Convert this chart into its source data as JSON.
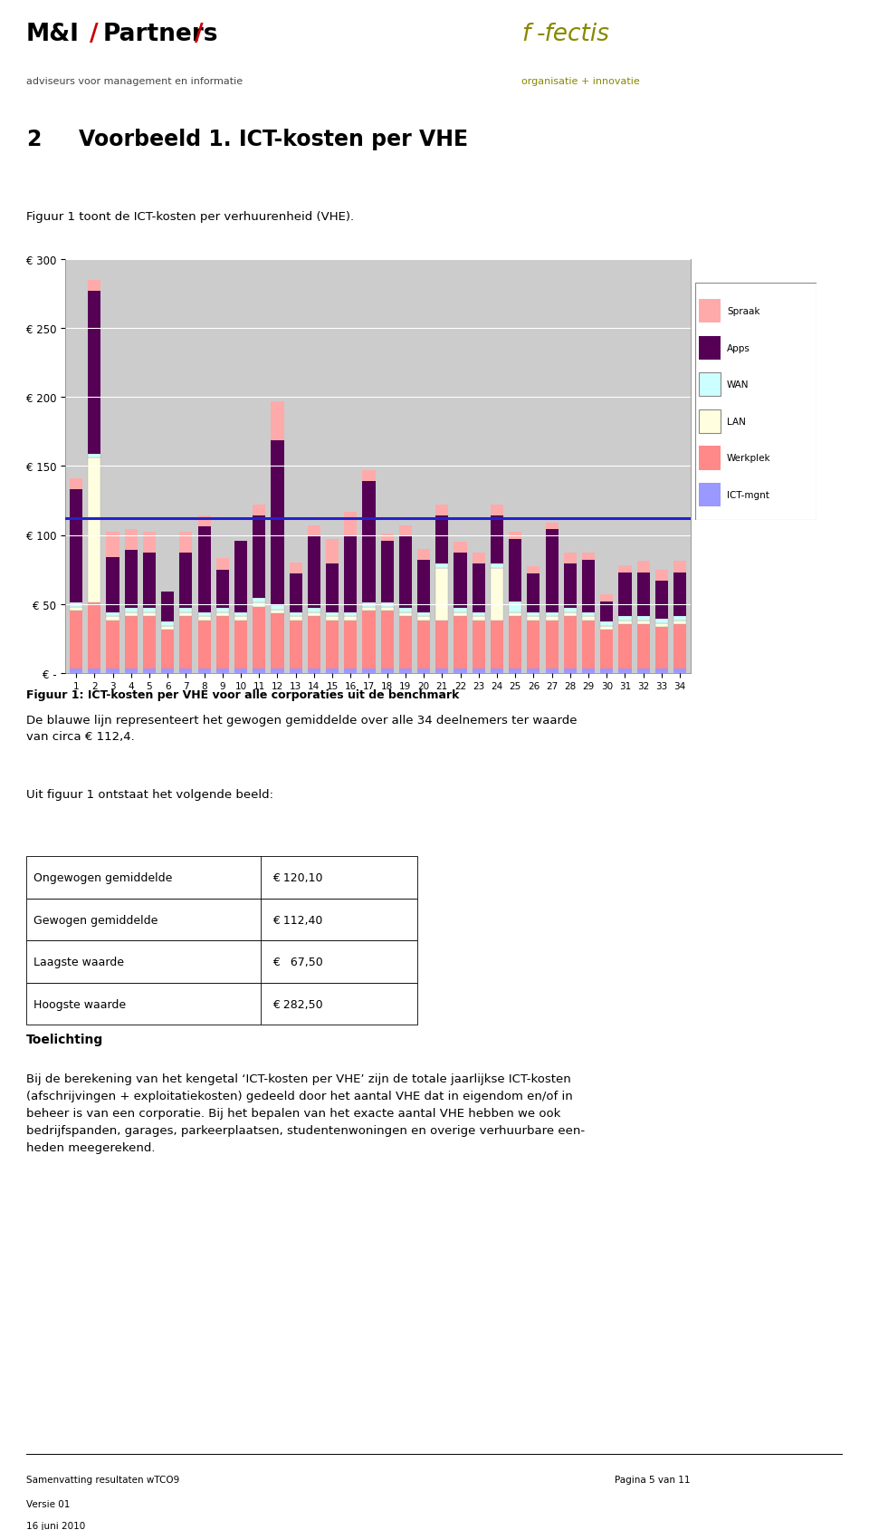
{
  "categories": [
    "1",
    "2",
    "3",
    "4",
    "5",
    "6",
    "7",
    "8",
    "9",
    "10",
    "11",
    "12",
    "13",
    "14",
    "15",
    "16",
    "17",
    "18",
    "19",
    "20",
    "21",
    "22",
    "23",
    "24",
    "25",
    "26",
    "27",
    "28",
    "29",
    "30",
    "31",
    "32",
    "33",
    "34"
  ],
  "ICT_mgnt": [
    3,
    3,
    3,
    3,
    3,
    3,
    3,
    3,
    3,
    3,
    3,
    3,
    3,
    3,
    3,
    3,
    3,
    3,
    3,
    3,
    3,
    3,
    3,
    3,
    3,
    3,
    3,
    3,
    3,
    3,
    3,
    3,
    3,
    3
  ],
  "Werkplek": [
    42,
    48,
    35,
    38,
    38,
    28,
    38,
    35,
    38,
    35,
    45,
    40,
    35,
    38,
    35,
    35,
    42,
    42,
    38,
    35,
    35,
    38,
    35,
    35,
    38,
    35,
    35,
    38,
    35,
    28,
    32,
    32,
    30,
    32
  ],
  "LAN": [
    3,
    105,
    3,
    3,
    3,
    3,
    3,
    3,
    3,
    3,
    3,
    3,
    3,
    3,
    3,
    3,
    3,
    3,
    3,
    3,
    38,
    3,
    3,
    38,
    3,
    3,
    3,
    3,
    3,
    3,
    3,
    3,
    3,
    3
  ],
  "WAN": [
    3,
    3,
    3,
    3,
    3,
    3,
    3,
    3,
    3,
    3,
    3,
    3,
    3,
    3,
    3,
    3,
    3,
    3,
    3,
    3,
    3,
    3,
    3,
    3,
    8,
    3,
    3,
    3,
    3,
    3,
    3,
    3,
    3,
    3
  ],
  "Apps": [
    82,
    118,
    40,
    42,
    40,
    22,
    40,
    62,
    28,
    52,
    60,
    120,
    28,
    52,
    35,
    55,
    88,
    45,
    52,
    38,
    35,
    40,
    35,
    35,
    45,
    28,
    60,
    32,
    38,
    15,
    32,
    32,
    28,
    32
  ],
  "Spraak": [
    8,
    8,
    18,
    15,
    15,
    0,
    15,
    8,
    8,
    0,
    8,
    28,
    8,
    8,
    18,
    18,
    8,
    5,
    8,
    8,
    8,
    8,
    8,
    8,
    5,
    5,
    5,
    8,
    5,
    5,
    5,
    8,
    8,
    8
  ],
  "avg_line": 112.4,
  "ylim": [
    0,
    300
  ],
  "yticks": [
    0,
    50,
    100,
    150,
    200,
    250,
    300
  ],
  "ytick_labels": [
    "€ -",
    "€ 50",
    "€ 100",
    "€ 150",
    "€ 200",
    "€ 250",
    "€ 300"
  ],
  "color_ICT_mgnt": "#9999FF",
  "color_Werkplek": "#FF8888",
  "color_LAN": "#FFFFE0",
  "color_WAN": "#CCFFFF",
  "color_Apps": "#550055",
  "color_Spraak": "#FFAAAA",
  "color_avg_line": "#2222CC",
  "bg_color": "#CCCCCC",
  "chart_border_color": "#999999",
  "grid_color": "#BBBBBB",
  "header_line_color": "#AAAAAA",
  "mi_color": "#000000",
  "slash_color": "#CC0000",
  "ffectis_color": "#AAAA00",
  "sub_text_color": "#555555"
}
